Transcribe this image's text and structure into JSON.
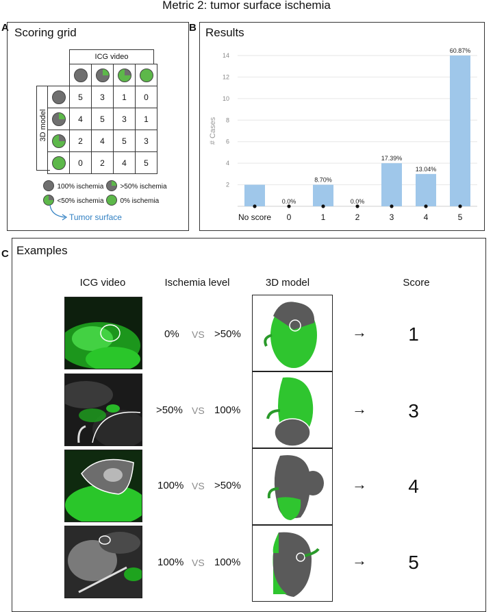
{
  "figure_title": "Metric 2: tumor surface ischemia",
  "panel_a": {
    "letter": "A",
    "title": "Scoring grid",
    "col_header": "ICG video",
    "row_header": "3D model",
    "scores": [
      [
        5,
        3,
        1,
        0
      ],
      [
        4,
        5,
        3,
        1
      ],
      [
        2,
        4,
        5,
        3
      ],
      [
        0,
        2,
        4,
        5
      ]
    ],
    "legend": [
      "100% ischemia",
      ">50% ischemia",
      "<50% ischemia",
      "0% ischemia"
    ],
    "tumor_label": "Tumor surface",
    "colors": {
      "ischemia": "#6f6f6f",
      "perfused": "#5db84a"
    }
  },
  "panel_b": {
    "letter": "B",
    "title": "Results"
  },
  "chart_data": {
    "type": "bar",
    "title": "Results",
    "ylabel": "# Cases",
    "xlabel": "",
    "categories": [
      "No score",
      "0",
      "1",
      "2",
      "3",
      "4",
      "5"
    ],
    "values": [
      2,
      0,
      2,
      0,
      4,
      3,
      14
    ],
    "data_labels": [
      "",
      "0.0%",
      "8.70%",
      "0.0%",
      "17.39%",
      "13.04%",
      "60.87%"
    ],
    "ylim": [
      0,
      14
    ],
    "yticks": [
      2,
      4,
      6,
      8,
      10,
      12,
      14
    ],
    "grid": true,
    "bar_color": "#9fc7ea"
  },
  "panel_c": {
    "letter": "C",
    "title": "Examples",
    "headers": {
      "video": "ICG video",
      "level": "Ischemia level",
      "model": "3D model",
      "score": "Score"
    },
    "vs": "VS",
    "arrow": "→",
    "rows": [
      {
        "left": "0%",
        "right": ">50%",
        "score": "1"
      },
      {
        "left": ">50%",
        "right": "100%",
        "score": "3"
      },
      {
        "left": "100%",
        "right": ">50%",
        "score": "4"
      },
      {
        "left": "100%",
        "right": "100%",
        "score": "5"
      }
    ]
  }
}
